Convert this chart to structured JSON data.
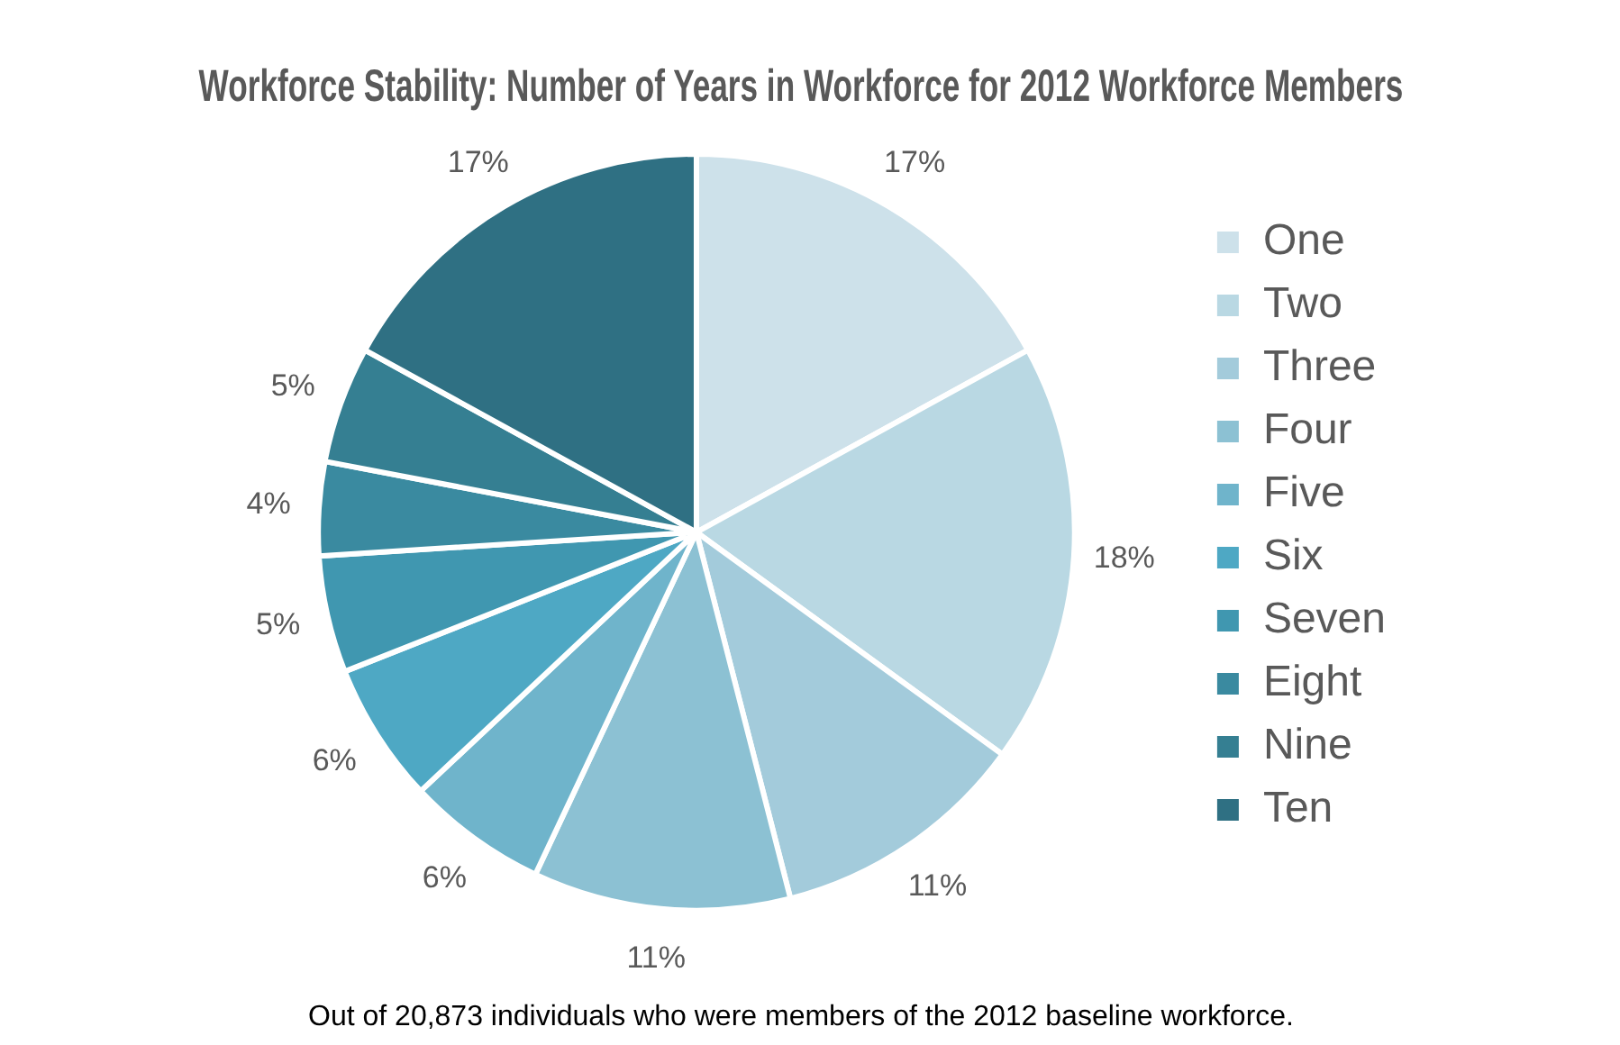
{
  "chart_data": {
    "type": "pie",
    "title": "Workforce Stability: Number of Years in Workforce for 2012 Workforce Members",
    "categories": [
      "One",
      "Two",
      "Three",
      "Four",
      "Five",
      "Six",
      "Seven",
      "Eight",
      "Nine",
      "Ten"
    ],
    "values": [
      17,
      18,
      11,
      11,
      6,
      6,
      5,
      4,
      5,
      17
    ],
    "value_labels": [
      "17%",
      "18%",
      "11%",
      "11%",
      "6%",
      "6%",
      "5%",
      "4%",
      "5%",
      "17%"
    ],
    "colors": [
      "#cde1ea",
      "#b9d8e3",
      "#a3cbdb",
      "#8cc1d3",
      "#6fb4cb",
      "#4ea8c4",
      "#4097b0",
      "#3a8aa0",
      "#357f92",
      "#2f7083"
    ],
    "legend": "right",
    "annotations": [
      "Out of 20,873 individuals who were members of the 2012 baseline workforce."
    ]
  }
}
